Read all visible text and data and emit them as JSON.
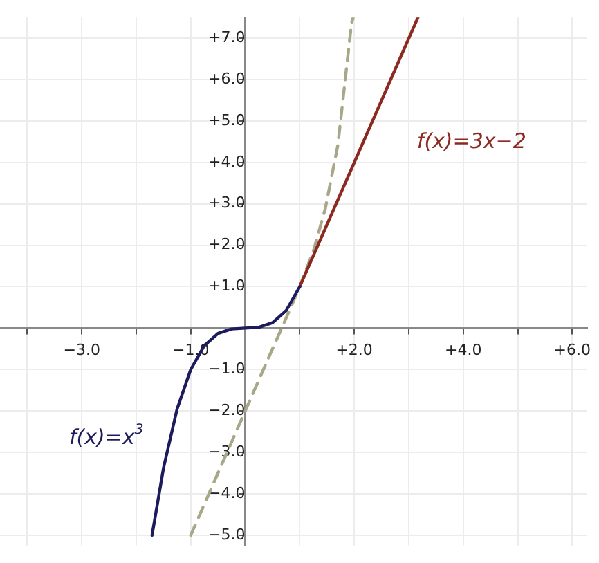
{
  "chart_data": {
    "type": "line",
    "series": [
      {
        "name": "f(x)=x$^{3}$",
        "color": "#1c1c5c",
        "x": [
          -1.71,
          -1.5,
          -1.25,
          -1,
          -0.75,
          -0.5,
          -0.25,
          0,
          0.25,
          0.5,
          0.75,
          1
        ],
        "values": [
          -5,
          -3.38,
          -1.95,
          -1,
          -0.42,
          -0.13,
          -0.02,
          0,
          0.02,
          0.13,
          0.42,
          1
        ]
      },
      {
        "name": "f(x)=3x−2",
        "color": "#8c2a22",
        "x": [
          1,
          3.17
        ],
        "values": [
          1,
          7.5
        ]
      },
      {
        "color": "#a8a888",
        "line_style": "dashed",
        "x": [
          -1,
          -0.5,
          0,
          0.5,
          0.67,
          1,
          1.26,
          1.47,
          1.7,
          1.95,
          1.98
        ],
        "values": [
          -5,
          -3.5,
          -2,
          -0.5,
          0,
          1,
          1.9,
          2.89,
          4.42,
          7.36,
          7.5
        ]
      }
    ],
    "xlim": [
      -4.5,
      6.27
    ],
    "ylim": [
      -5.25,
      7.5
    ],
    "xticks": [
      {
        "value": -4,
        "label": null
      },
      {
        "value": -3,
        "label": "−3.0"
      },
      {
        "value": -2,
        "label": null
      },
      {
        "value": -1,
        "label": "−1.0"
      },
      {
        "value": 0,
        "label": null
      },
      {
        "value": 1,
        "label": null
      },
      {
        "value": 2,
        "label": "+2.0"
      },
      {
        "value": 3,
        "label": null
      },
      {
        "value": 4,
        "label": "+4.0"
      },
      {
        "value": 5,
        "label": null
      },
      {
        "value": 6,
        "label": "+6.0"
      }
    ],
    "yticks": [
      {
        "value": -5,
        "label": "−5.0"
      },
      {
        "value": -4,
        "label": "−4.0"
      },
      {
        "value": -3,
        "label": "−3.0"
      },
      {
        "value": -2,
        "label": "−2.0"
      },
      {
        "value": -1,
        "label": "−1.0"
      },
      {
        "value": 0,
        "label": null
      },
      {
        "value": 1,
        "label": "+1.0"
      },
      {
        "value": 2,
        "label": "+2.0"
      },
      {
        "value": 3,
        "label": "+3.0"
      },
      {
        "value": 4,
        "label": "+4.0"
      },
      {
        "value": 5,
        "label": "+5.0"
      },
      {
        "value": 6,
        "label": "+6.0"
      },
      {
        "value": 7,
        "label": "+7.0"
      }
    ],
    "grid": true,
    "marker": "none"
  }
}
